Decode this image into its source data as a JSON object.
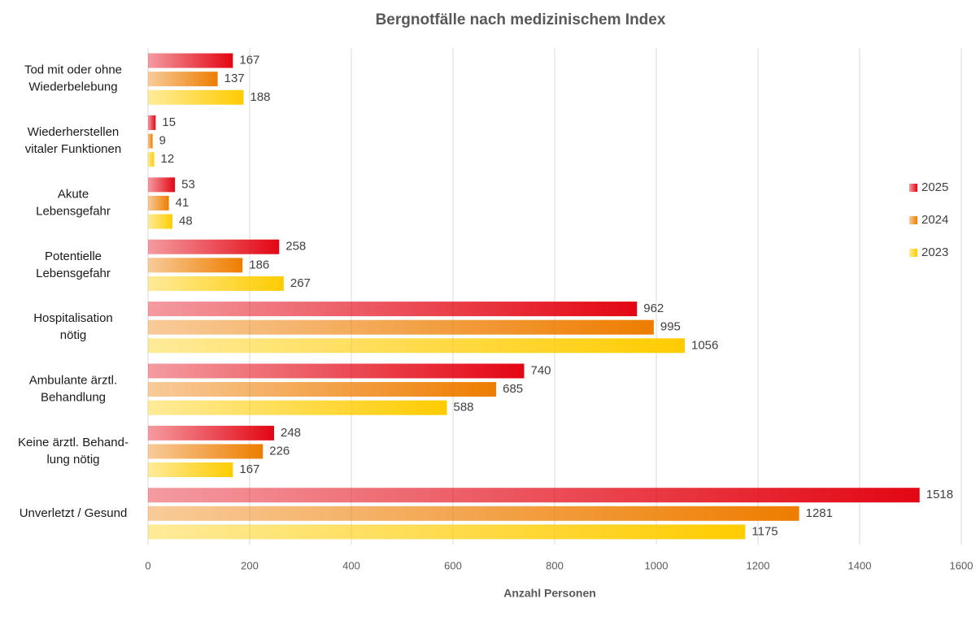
{
  "chart_data": {
    "type": "bar",
    "orientation": "horizontal",
    "title": "Bergnotfälle nach medizinischem Index",
    "xlabel": "Anzahl Personen",
    "categories": [
      "Tod mit oder ohne\nWiederbelebung",
      "Wiederherstellen\nvitaler Funktionen",
      "Akute\nLebensgefahr",
      "Potentielle\nLebensgefahr",
      "Hospitalisation\nnötig",
      "Ambulante ärztl.\nBehandlung",
      "Keine ärztl. Behand-\nlung nötig",
      "Unverletzt / Gesund"
    ],
    "series": [
      {
        "name": "2025",
        "color": "#e30613",
        "values": [
          167,
          15,
          53,
          258,
          962,
          740,
          248,
          1518
        ]
      },
      {
        "name": "2024",
        "color": "#ee7d00",
        "values": [
          137,
          9,
          41,
          186,
          995,
          685,
          226,
          1281
        ]
      },
      {
        "name": "2023",
        "color": "#ffcc00",
        "values": [
          188,
          12,
          48,
          267,
          1056,
          588,
          167,
          1175
        ]
      }
    ],
    "xlim": [
      0,
      1600
    ],
    "xticks": [
      0,
      200,
      400,
      600,
      800,
      1000,
      1200,
      1400,
      1600
    ],
    "grid": true,
    "legend": "right"
  }
}
